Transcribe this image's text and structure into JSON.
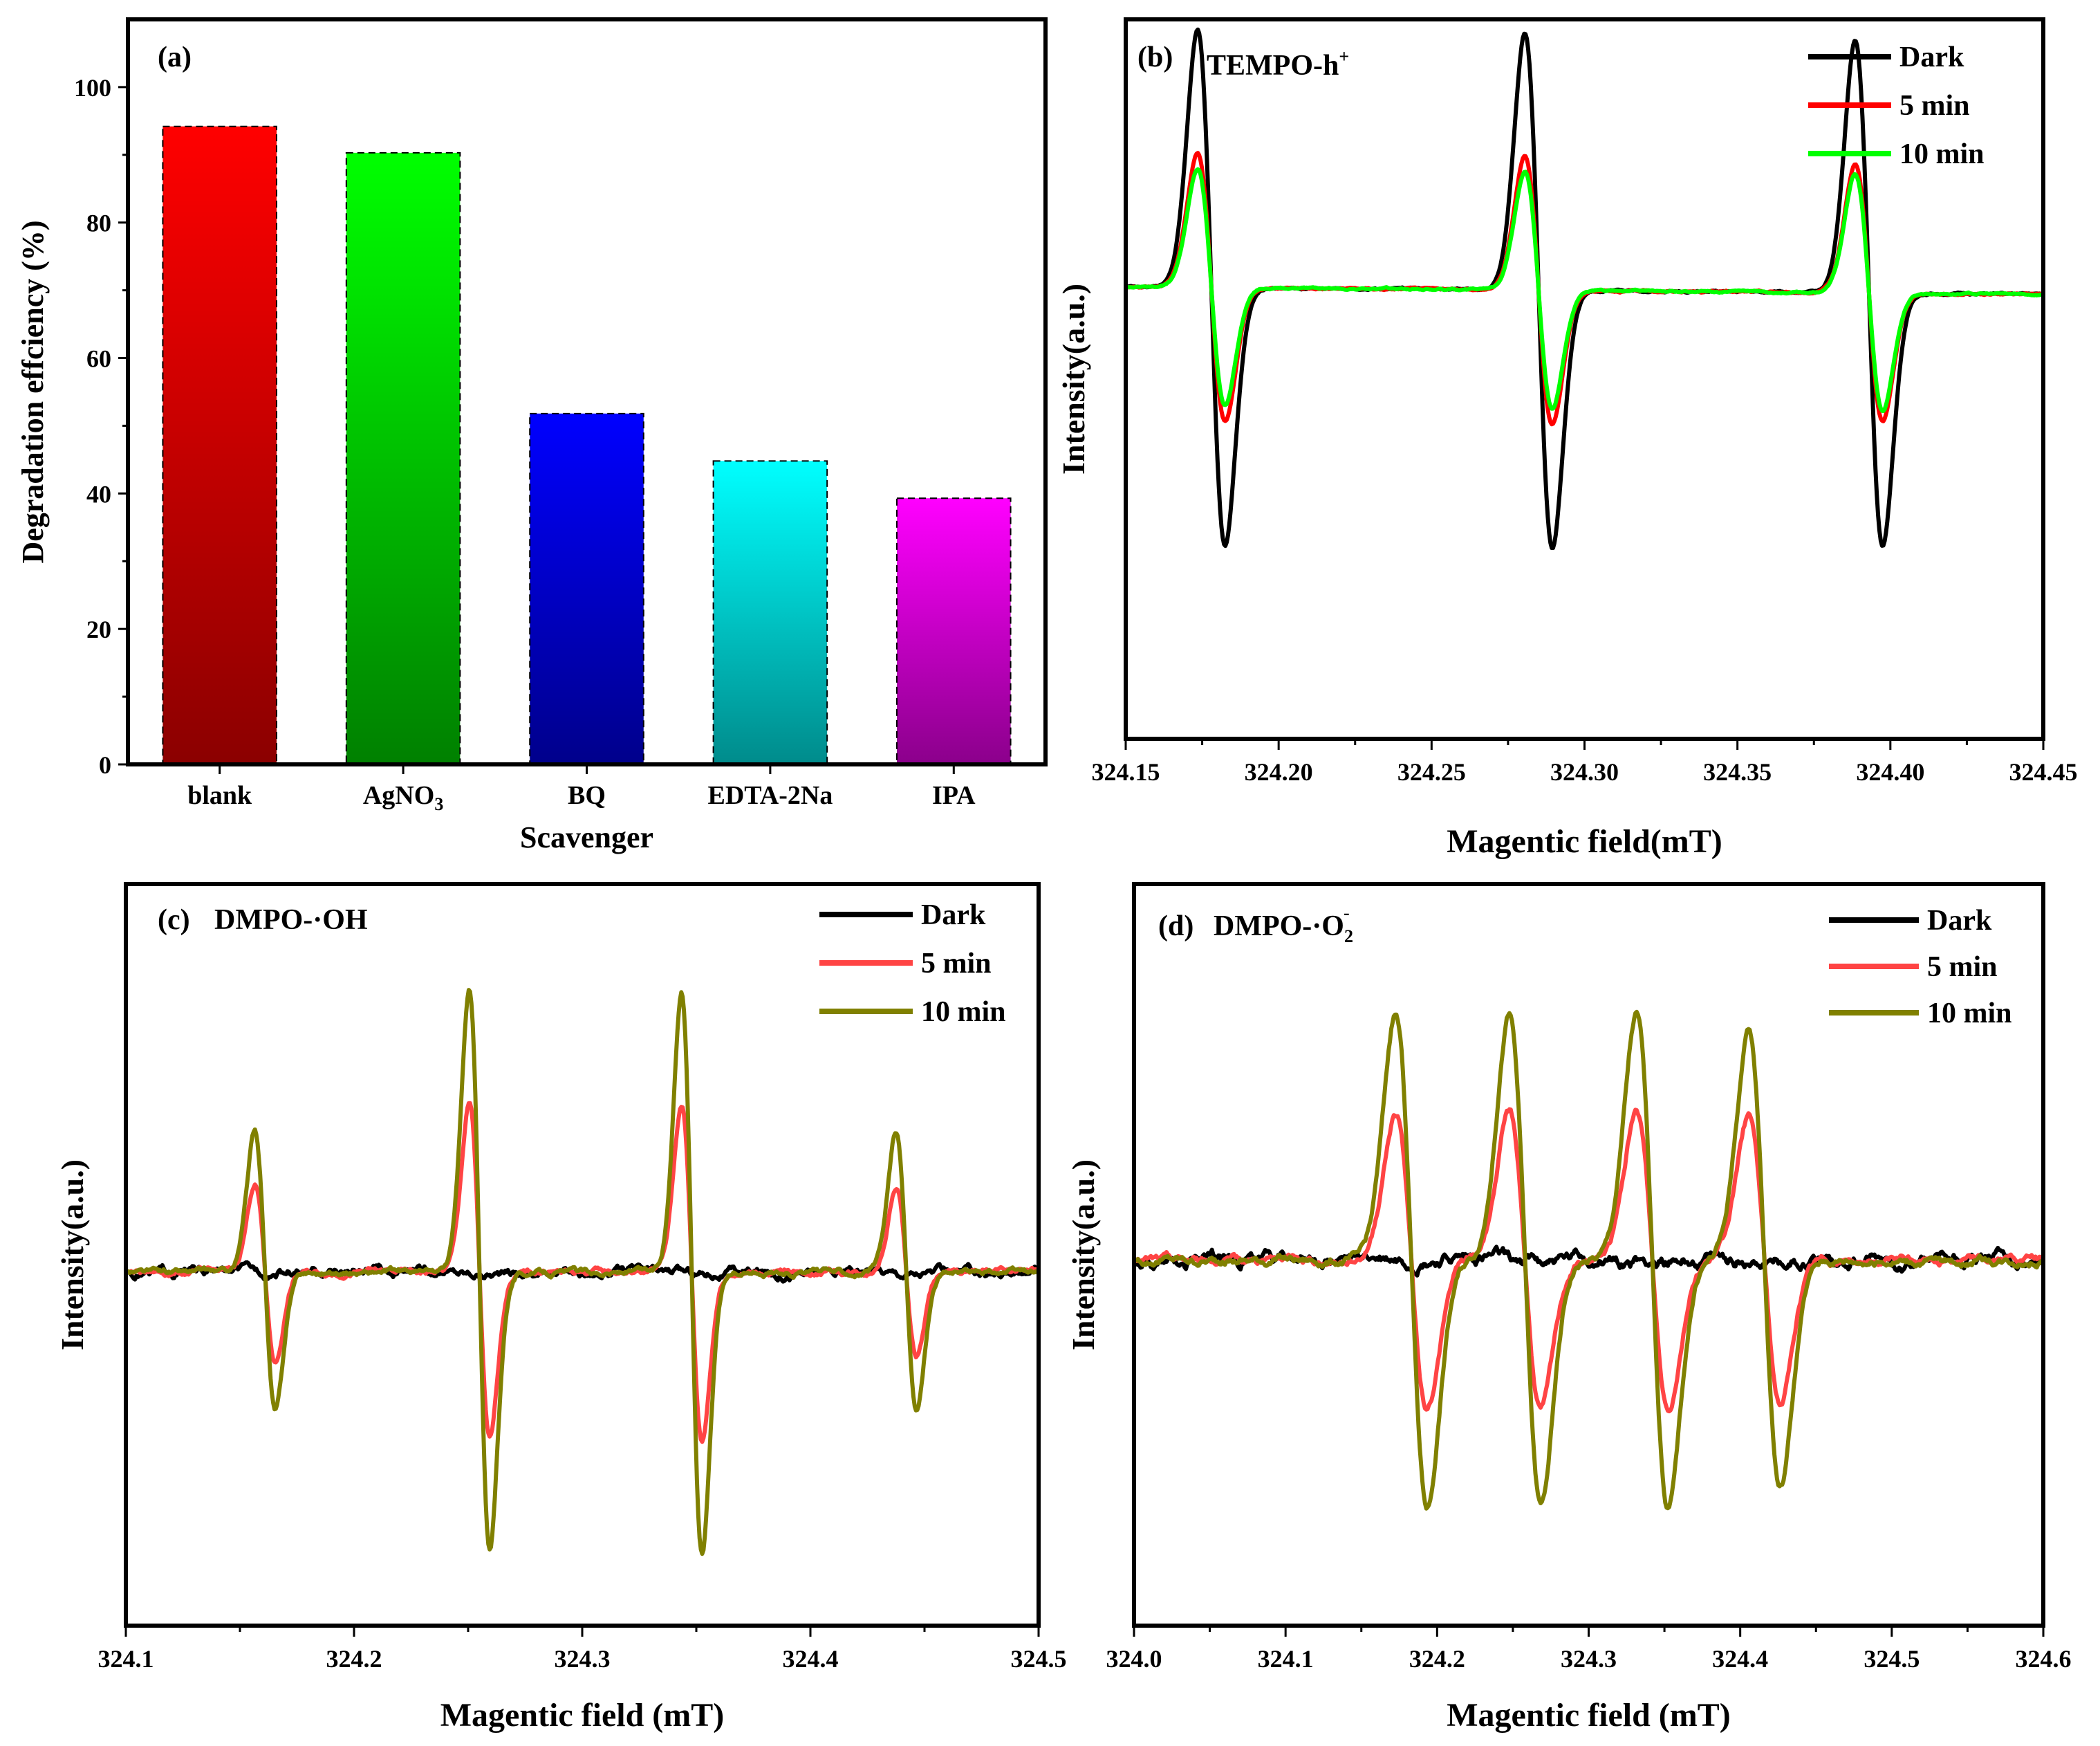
{
  "chart_data": [
    {
      "panel": "(a)",
      "type": "bar",
      "xlabel": "Scavenger",
      "ylabel": "Degradation effciency (%)",
      "ylim": [
        0,
        110
      ],
      "yticks": [
        0,
        20,
        40,
        60,
        80,
        100
      ],
      "categories": [
        "blank",
        "AgNO3",
        "BQ",
        "EDTA-2Na",
        "IPA"
      ],
      "category_labels": [
        {
          "main": "blank",
          "sub": ""
        },
        {
          "main": "AgNO",
          "sub": "3"
        },
        {
          "main": "BQ",
          "sub": ""
        },
        {
          "main": "EDTA-2Na",
          "sub": ""
        },
        {
          "main": "IPA",
          "sub": ""
        }
      ],
      "values": [
        94.2,
        90.3,
        51.8,
        44.8,
        39.3
      ],
      "colors": [
        {
          "top": "#ff0000",
          "bottom": "#8b0000"
        },
        {
          "top": "#00ff00",
          "bottom": "#008000"
        },
        {
          "top": "#0000ff",
          "bottom": "#00008b"
        },
        {
          "top": "#00ffff",
          "bottom": "#008b8b"
        },
        {
          "top": "#ff00ff",
          "bottom": "#8b008b"
        }
      ]
    },
    {
      "panel": "(b)",
      "title": "TEMPO-h",
      "title_sup": "+",
      "type": "line",
      "xlabel": "Magentic field(mT)",
      "ylabel": "Intensity(a.u.)",
      "xlim": [
        324.15,
        324.45
      ],
      "xticks": [
        "324.15",
        "324.20",
        "324.25",
        "324.30",
        "324.35",
        "324.40",
        "324.45"
      ],
      "legend": "top-right",
      "shape": {
        "peaks": [
          324.178,
          324.285,
          324.393
        ],
        "width": 0.0045,
        "baseline_left": 0.05,
        "baseline_right": 0.02,
        "noise": 0.004
      },
      "series": [
        {
          "name": "Dark",
          "color": "#000000",
          "amps": [
            1.0,
            1.0,
            0.98
          ]
        },
        {
          "name": "5 min",
          "color": "#ff0000",
          "amps": [
            0.52,
            0.52,
            0.5
          ]
        },
        {
          "name": "10 min",
          "color": "#00ff00",
          "amps": [
            0.46,
            0.46,
            0.46
          ]
        }
      ]
    },
    {
      "panel": "(c)",
      "title": "DMPO-·OH",
      "type": "line",
      "xlabel": "Magentic field (mT)",
      "ylabel": "Intensity(a.u.)",
      "xlim": [
        324.1,
        324.5
      ],
      "xticks": [
        "324.1",
        "324.2",
        "324.3",
        "324.4",
        "324.5"
      ],
      "legend": "top-right",
      "shape": {
        "peaks": [
          324.161,
          324.255,
          324.348,
          324.442
        ],
        "width": 0.0045,
        "baseline_left": 0.0,
        "baseline_right": 0.0,
        "noise": 0.012
      },
      "series": [
        {
          "name": "Dark",
          "color": "#000000",
          "amps": [
            0,
            0,
            0,
            0
          ]
        },
        {
          "name": "5 min",
          "color": "#ff4444",
          "amps": [
            0.32,
            0.6,
            0.6,
            0.3
          ]
        },
        {
          "name": "10 min",
          "color": "#808000",
          "amps": [
            0.5,
            1.0,
            1.0,
            0.5
          ]
        }
      ]
    },
    {
      "panel": "(d)",
      "title": "DMPO-·O",
      "title_sub": "2",
      "title_sup": "-",
      "type": "line",
      "xlabel": "Magentic field (mT)",
      "ylabel": "Intensity(a.u.)",
      "xlim": [
        324.0,
        324.6
      ],
      "xticks": [
        "324.0",
        "324.1",
        "324.2",
        "324.3",
        "324.4",
        "324.5",
        "324.6"
      ],
      "legend": "top-right",
      "shape": {
        "peaks": [
          324.183,
          324.258,
          324.342,
          324.416
        ],
        "width": 0.0105,
        "baseline_left": 0.0,
        "baseline_right": 0.0,
        "noise": 0.02
      },
      "series": [
        {
          "name": "Dark",
          "color": "#000000",
          "amps": [
            0,
            0,
            0,
            0
          ]
        },
        {
          "name": "5 min",
          "color": "#ff4444",
          "amps": [
            0.6,
            0.6,
            0.6,
            0.58
          ]
        },
        {
          "name": "10 min",
          "color": "#808000",
          "amps": [
            1.0,
            1.0,
            1.0,
            0.92
          ]
        }
      ]
    }
  ]
}
